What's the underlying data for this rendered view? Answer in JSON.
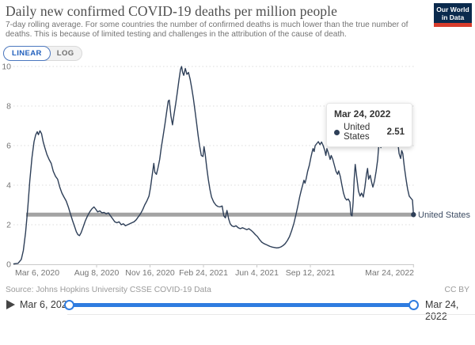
{
  "header": {
    "title": "Daily new confirmed COVID-19 deaths per million people",
    "subtitle": "7-day rolling average. For some countries the number of confirmed deaths is much lower than the true number of deaths. This is because of limited testing and challenges in the attribution of the cause of death.",
    "logo": {
      "line1": "Our World",
      "line2": "in Data",
      "bg_color": "#0a2a4d",
      "stripe_color": "#d73c2c"
    }
  },
  "controls": {
    "linear_label": "LINEAR",
    "log_label": "LOG",
    "active": "LINEAR",
    "active_color": "#2260bd"
  },
  "chart_data": {
    "type": "line",
    "title": "Daily new confirmed COVID-19 deaths per million people",
    "xlabel": "",
    "ylabel": "",
    "grid": "dotted horizontal",
    "y_axis": {
      "ticks": [
        0,
        2,
        4,
        6,
        8,
        10
      ],
      "range": [
        0,
        10
      ]
    },
    "x_axis": {
      "start_date": "Mar 6, 2020",
      "end_date": "Mar 24, 2022",
      "range_days": [
        0,
        748
      ],
      "ticks": [
        {
          "label": "Mar 6, 2020",
          "day": 0
        },
        {
          "label": "Aug 8, 2020",
          "day": 155
        },
        {
          "label": "Nov 16, 2020",
          "day": 255
        },
        {
          "label": "Feb 24, 2021",
          "day": 355
        },
        {
          "label": "Jun 4, 2021",
          "day": 455
        },
        {
          "label": "Sep 12, 2021",
          "day": 555
        },
        {
          "label": "Mar 24, 2022",
          "day": 748
        }
      ]
    },
    "reference_line": {
      "label": "United States",
      "value": 2.51,
      "color": "#a3a3a3"
    },
    "series": [
      {
        "name": "United States",
        "color": "#2e3f58",
        "points": [
          [
            0,
            0.02
          ],
          [
            8,
            0.05
          ],
          [
            14,
            0.25
          ],
          [
            18,
            0.7
          ],
          [
            22,
            1.6
          ],
          [
            26,
            2.8
          ],
          [
            30,
            4.2
          ],
          [
            34,
            5.4
          ],
          [
            38,
            6.2
          ],
          [
            41,
            6.55
          ],
          [
            44,
            6.7
          ],
          [
            46,
            6.55
          ],
          [
            49,
            6.75
          ],
          [
            52,
            6.6
          ],
          [
            55,
            6.2
          ],
          [
            58,
            5.9
          ],
          [
            62,
            5.55
          ],
          [
            66,
            5.3
          ],
          [
            70,
            5.1
          ],
          [
            74,
            4.7
          ],
          [
            78,
            4.45
          ],
          [
            82,
            4.3
          ],
          [
            86,
            3.9
          ],
          [
            90,
            3.6
          ],
          [
            94,
            3.4
          ],
          [
            98,
            3.2
          ],
          [
            102,
            2.9
          ],
          [
            106,
            2.55
          ],
          [
            110,
            2.2
          ],
          [
            114,
            1.9
          ],
          [
            117,
            1.65
          ],
          [
            120,
            1.5
          ],
          [
            123,
            1.45
          ],
          [
            126,
            1.6
          ],
          [
            130,
            1.9
          ],
          [
            134,
            2.2
          ],
          [
            138,
            2.45
          ],
          [
            142,
            2.65
          ],
          [
            146,
            2.8
          ],
          [
            150,
            2.9
          ],
          [
            153,
            2.8
          ],
          [
            157,
            2.65
          ],
          [
            161,
            2.7
          ],
          [
            165,
            2.6
          ],
          [
            169,
            2.62
          ],
          [
            173,
            2.55
          ],
          [
            177,
            2.6
          ],
          [
            181,
            2.45
          ],
          [
            185,
            2.3
          ],
          [
            189,
            2.15
          ],
          [
            193,
            2.1
          ],
          [
            197,
            2.15
          ],
          [
            201,
            2.0
          ],
          [
            205,
            2.05
          ],
          [
            209,
            1.95
          ],
          [
            213,
            2.0
          ],
          [
            217,
            2.05
          ],
          [
            221,
            2.1
          ],
          [
            225,
            2.15
          ],
          [
            229,
            2.25
          ],
          [
            233,
            2.4
          ],
          [
            237,
            2.55
          ],
          [
            241,
            2.75
          ],
          [
            245,
            3.0
          ],
          [
            249,
            3.2
          ],
          [
            253,
            3.45
          ],
          [
            256,
            3.9
          ],
          [
            259,
            4.5
          ],
          [
            262,
            5.1
          ],
          [
            264,
            4.65
          ],
          [
            267,
            4.55
          ],
          [
            270,
            4.9
          ],
          [
            273,
            5.3
          ],
          [
            276,
            5.9
          ],
          [
            279,
            6.4
          ],
          [
            283,
            7.1
          ],
          [
            286,
            7.7
          ],
          [
            289,
            8.25
          ],
          [
            291,
            8.3
          ],
          [
            294,
            7.5
          ],
          [
            297,
            7.05
          ],
          [
            300,
            7.6
          ],
          [
            303,
            8.1
          ],
          [
            306,
            8.7
          ],
          [
            309,
            9.3
          ],
          [
            312,
            9.85
          ],
          [
            314,
            10.0
          ],
          [
            316,
            9.7
          ],
          [
            318,
            9.55
          ],
          [
            321,
            9.9
          ],
          [
            324,
            9.6
          ],
          [
            327,
            9.7
          ],
          [
            330,
            9.35
          ],
          [
            333,
            8.9
          ],
          [
            336,
            8.4
          ],
          [
            339,
            7.8
          ],
          [
            342,
            7.15
          ],
          [
            345,
            6.5
          ],
          [
            348,
            5.95
          ],
          [
            351,
            5.5
          ],
          [
            354,
            5.45
          ],
          [
            356,
            5.95
          ],
          [
            358,
            5.6
          ],
          [
            361,
            4.9
          ],
          [
            364,
            4.3
          ],
          [
            367,
            3.8
          ],
          [
            370,
            3.4
          ],
          [
            374,
            3.15
          ],
          [
            378,
            3.0
          ],
          [
            382,
            2.92
          ],
          [
            386,
            2.9
          ],
          [
            390,
            2.95
          ],
          [
            393,
            2.45
          ],
          [
            396,
            2.35
          ],
          [
            399,
            2.72
          ],
          [
            402,
            2.3
          ],
          [
            405,
            2.05
          ],
          [
            408,
            1.95
          ],
          [
            412,
            1.9
          ],
          [
            416,
            1.95
          ],
          [
            420,
            1.85
          ],
          [
            424,
            1.8
          ],
          [
            428,
            1.85
          ],
          [
            432,
            1.8
          ],
          [
            436,
            1.75
          ],
          [
            440,
            1.8
          ],
          [
            444,
            1.72
          ],
          [
            448,
            1.62
          ],
          [
            452,
            1.5
          ],
          [
            456,
            1.4
          ],
          [
            460,
            1.25
          ],
          [
            464,
            1.12
          ],
          [
            468,
            1.05
          ],
          [
            472,
            1.0
          ],
          [
            476,
            0.95
          ],
          [
            480,
            0.9
          ],
          [
            484,
            0.87
          ],
          [
            488,
            0.85
          ],
          [
            492,
            0.83
          ],
          [
            496,
            0.84
          ],
          [
            500,
            0.88
          ],
          [
            504,
            0.95
          ],
          [
            508,
            1.05
          ],
          [
            512,
            1.2
          ],
          [
            516,
            1.4
          ],
          [
            520,
            1.7
          ],
          [
            524,
            2.05
          ],
          [
            528,
            2.5
          ],
          [
            532,
            3.0
          ],
          [
            535,
            3.4
          ],
          [
            538,
            3.75
          ],
          [
            541,
            4.05
          ],
          [
            543,
            4.25
          ],
          [
            545,
            4.1
          ],
          [
            547,
            4.3
          ],
          [
            550,
            4.7
          ],
          [
            553,
            5.0
          ],
          [
            556,
            5.4
          ],
          [
            558,
            5.65
          ],
          [
            560,
            5.85
          ],
          [
            562,
            5.7
          ],
          [
            564,
            6.0
          ],
          [
            567,
            6.1
          ],
          [
            570,
            6.2
          ],
          [
            573,
            6.05
          ],
          [
            576,
            6.18
          ],
          [
            579,
            6.0
          ],
          [
            582,
            5.75
          ],
          [
            584,
            5.5
          ],
          [
            586,
            5.85
          ],
          [
            589,
            5.6
          ],
          [
            592,
            5.3
          ],
          [
            594,
            5.5
          ],
          [
            597,
            5.3
          ],
          [
            600,
            5.0
          ],
          [
            603,
            4.7
          ],
          [
            606,
            4.55
          ],
          [
            608,
            4.72
          ],
          [
            611,
            4.45
          ],
          [
            614,
            4.0
          ],
          [
            617,
            3.6
          ],
          [
            620,
            3.35
          ],
          [
            623,
            3.25
          ],
          [
            626,
            3.3
          ],
          [
            629,
            3.15
          ],
          [
            631,
            2.5
          ],
          [
            633,
            2.45
          ],
          [
            635,
            3.1
          ],
          [
            637,
            4.3
          ],
          [
            639,
            5.05
          ],
          [
            642,
            4.35
          ],
          [
            645,
            3.7
          ],
          [
            648,
            3.45
          ],
          [
            651,
            3.6
          ],
          [
            654,
            3.4
          ],
          [
            657,
            3.9
          ],
          [
            660,
            4.55
          ],
          [
            662,
            4.85
          ],
          [
            664,
            4.3
          ],
          [
            667,
            4.5
          ],
          [
            670,
            4.1
          ],
          [
            672,
            3.9
          ],
          [
            675,
            4.2
          ],
          [
            678,
            4.7
          ],
          [
            681,
            5.3
          ],
          [
            683,
            6.0
          ],
          [
            685,
            6.3
          ],
          [
            687,
            5.9
          ],
          [
            690,
            6.15
          ],
          [
            693,
            6.55
          ],
          [
            696,
            7.0
          ],
          [
            699,
            7.4
          ],
          [
            702,
            7.65
          ],
          [
            704,
            7.45
          ],
          [
            707,
            7.6
          ],
          [
            710,
            7.35
          ],
          [
            713,
            7.0
          ],
          [
            716,
            6.7
          ],
          [
            719,
            6.1
          ],
          [
            721,
            5.6
          ],
          [
            724,
            5.35
          ],
          [
            726,
            5.75
          ],
          [
            728,
            5.6
          ],
          [
            731,
            4.9
          ],
          [
            734,
            4.3
          ],
          [
            737,
            3.8
          ],
          [
            740,
            3.45
          ],
          [
            743,
            3.35
          ],
          [
            746,
            3.25
          ],
          [
            748,
            2.51
          ]
        ]
      }
    ]
  },
  "tooltip": {
    "date": "Mar 24, 2022",
    "rows": [
      {
        "label": "United States",
        "value": "2.51",
        "color": "#2e3f58"
      }
    ]
  },
  "end_label": {
    "text": "United States",
    "color": "#3d4c63"
  },
  "footer": {
    "source_label": "Source:",
    "source_text": "Johns Hopkins University CSSE COVID-19 Data",
    "license": "CC BY"
  },
  "timeline": {
    "start_label": "Mar 6, 2020",
    "end_label": "Mar 24, 2022",
    "track_color": "#2f7ce0"
  }
}
